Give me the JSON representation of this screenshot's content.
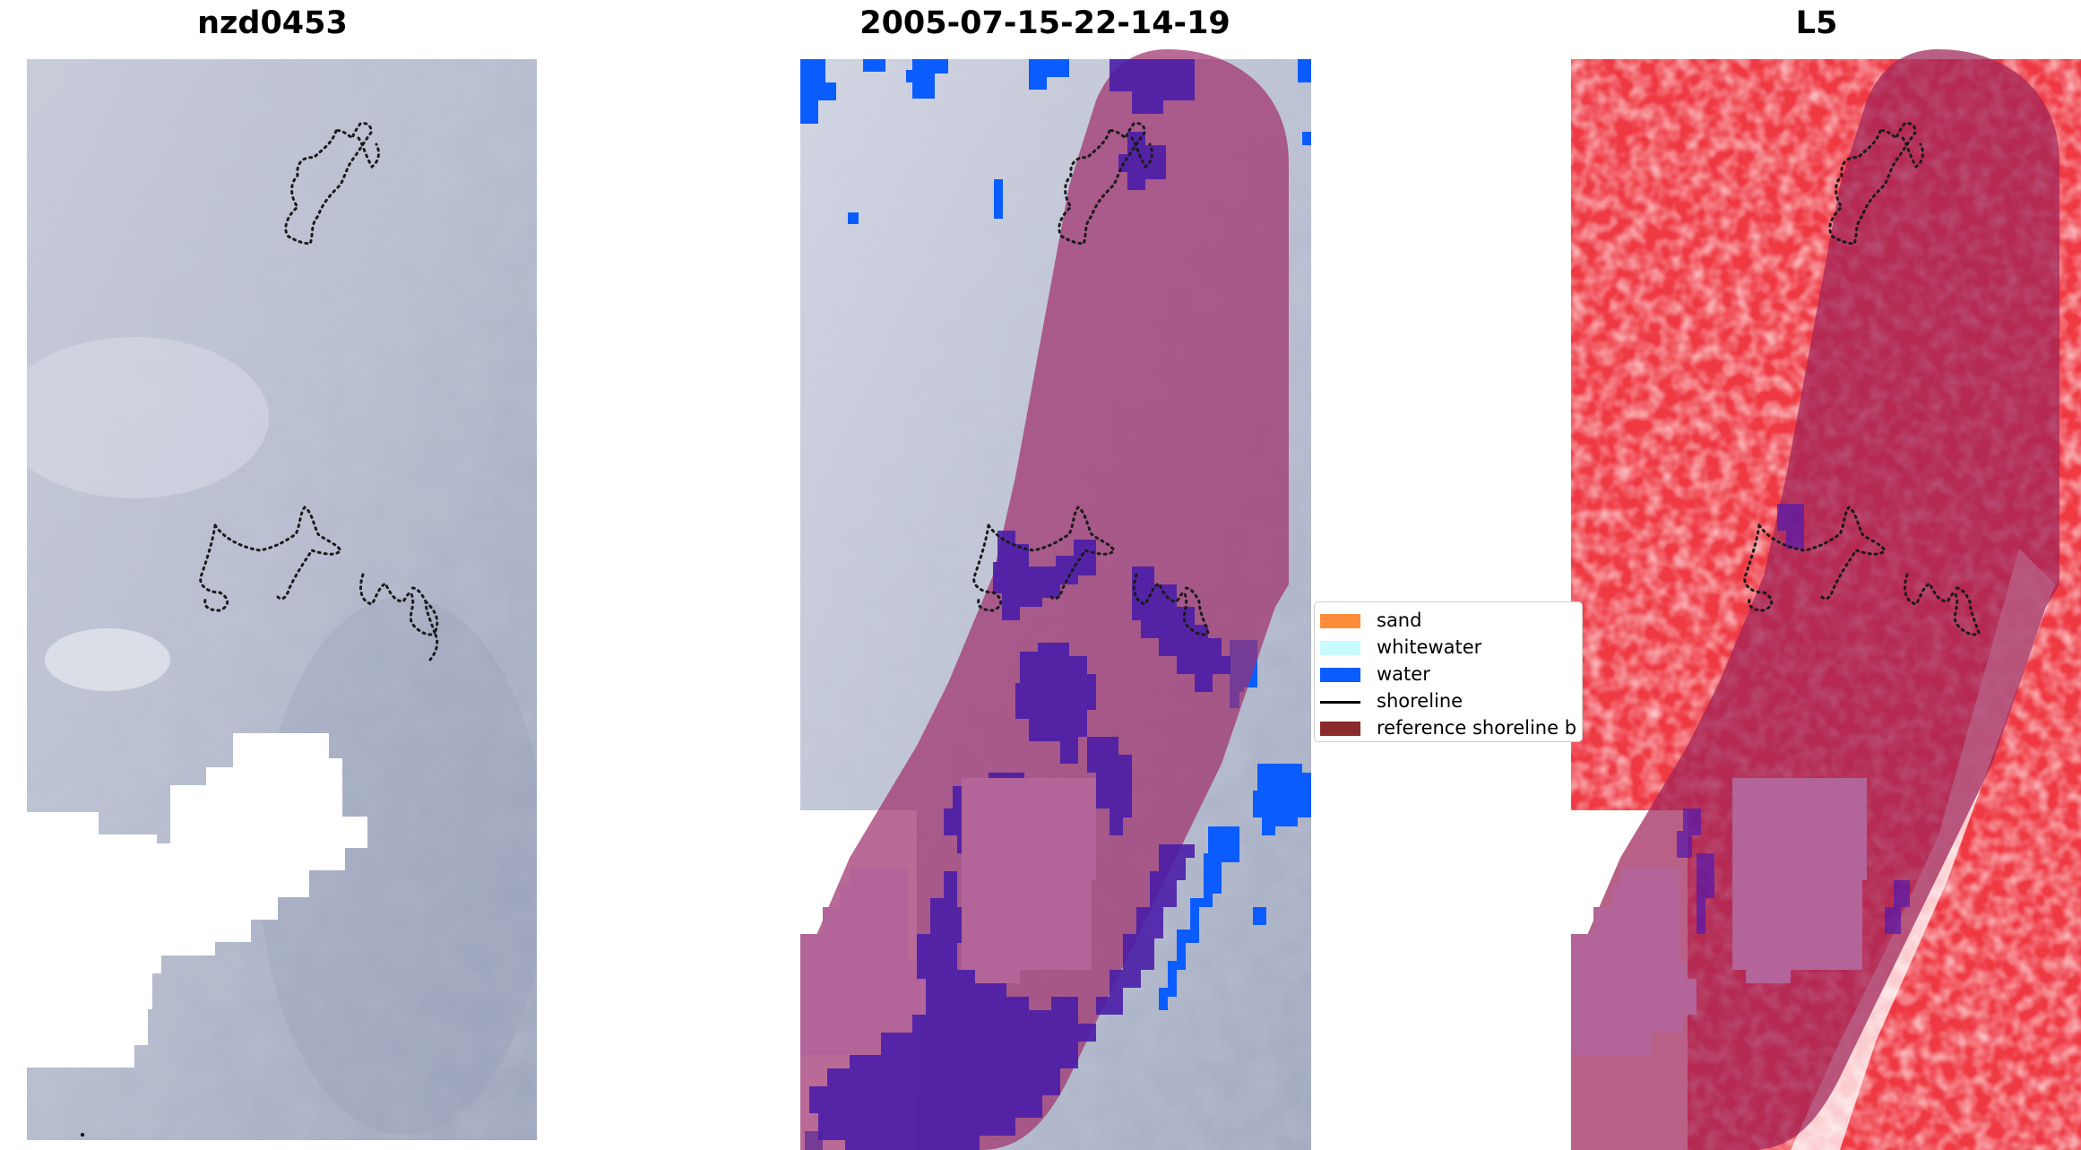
{
  "panels": [
    {
      "title": "nzd0453"
    },
    {
      "title": "2005-07-15-22-14-19"
    },
    {
      "title": "L5"
    }
  ],
  "legend": {
    "items": [
      {
        "label": "sand",
        "color": "#ff8c3a",
        "kind": "patch"
      },
      {
        "label": "whitewater",
        "color": "#c8fbff",
        "kind": "patch"
      },
      {
        "label": "water",
        "color": "#0a5cff",
        "kind": "patch"
      },
      {
        "label": "shoreline",
        "color": "#000000",
        "kind": "line"
      },
      {
        "label": "reference shoreline b",
        "color": "#8b2a2a",
        "kind": "patch"
      }
    ]
  },
  "colors": {
    "imagery_base": "#b7bccd",
    "buffer_overlay": "#a0306e",
    "water_class": "#0a5cff",
    "index_red": "#ef3a44",
    "mask_white": "#ffffff"
  }
}
